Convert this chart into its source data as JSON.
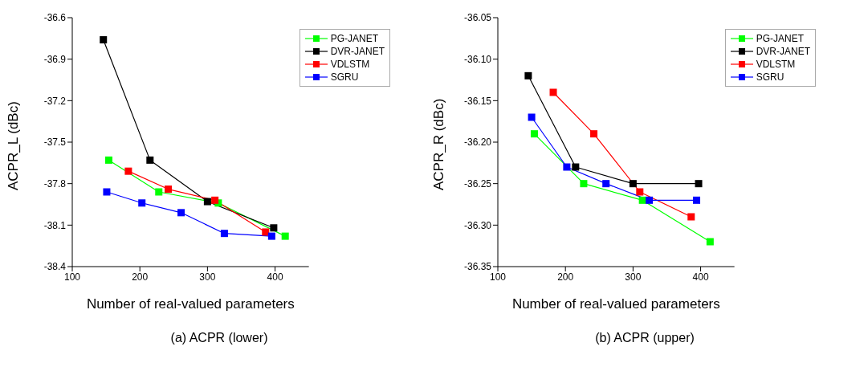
{
  "chart_data": [
    {
      "type": "line",
      "xlabel": "Number of real-valued parameters",
      "ylabel": "ACPR_L (dBc)",
      "annotations": [
        "(a) ACPR (lower)"
      ],
      "xlim": [
        100,
        450
      ],
      "xticks": [
        100,
        200,
        300,
        400
      ],
      "ylim": [
        -38.4,
        -36.6
      ],
      "yticks": [
        {
          "value": -36.6,
          "label": "-36.6"
        },
        {
          "value": -36.9,
          "label": "-36.9"
        },
        {
          "value": -37.2,
          "label": "-37.2"
        },
        {
          "value": -37.5,
          "label": "-37.5"
        },
        {
          "value": -37.8,
          "label": "-37.8"
        },
        {
          "value": -38.1,
          "label": "-38.1"
        },
        {
          "value": -38.4,
          "label": "-38.4"
        }
      ],
      "grid": false,
      "legend": "top right",
      "marker": "square",
      "line_style": "solid",
      "series": [
        {
          "name": "PG-JANET",
          "color": "#00ff00",
          "x": [
            154,
            228,
            316,
            415
          ],
          "values": [
            -37.63,
            -37.86,
            -37.94,
            -38.18
          ]
        },
        {
          "name": "DVR-JANET",
          "color": "#000000",
          "x": [
            146,
            215,
            300,
            398
          ],
          "values": [
            -36.76,
            -37.63,
            -37.93,
            -38.12
          ]
        },
        {
          "name": "VDLSTM",
          "color": "#ff0000",
          "x": [
            183,
            242,
            311,
            386
          ],
          "values": [
            -37.71,
            -37.84,
            -37.92,
            -38.15
          ]
        },
        {
          "name": "SGRU",
          "color": "#0000ff",
          "x": [
            151,
            203,
            261,
            325,
            395
          ],
          "values": [
            -37.86,
            -37.94,
            -38.01,
            -38.16,
            -38.18
          ]
        }
      ]
    },
    {
      "type": "line",
      "xlabel": "Number of real-valued parameters",
      "ylabel": "ACPR_R (dBc)",
      "annotations": [
        "(b) ACPR (upper)"
      ],
      "xlim": [
        100,
        450
      ],
      "xticks": [
        100,
        200,
        300,
        400
      ],
      "ylim": [
        -36.35,
        -36.05
      ],
      "yticks": [
        {
          "value": -36.05,
          "label": "-36.05"
        },
        {
          "value": -36.1,
          "label": "-36.10"
        },
        {
          "value": -36.15,
          "label": "-36.15"
        },
        {
          "value": -36.2,
          "label": "-36.20"
        },
        {
          "value": -36.25,
          "label": "-36.25"
        },
        {
          "value": -36.3,
          "label": "-36.30"
        },
        {
          "value": -36.35,
          "label": "-36.35"
        }
      ],
      "grid": false,
      "legend": "top right",
      "marker": "square",
      "line_style": "solid",
      "series": [
        {
          "name": "PG-JANET",
          "color": "#00ff00",
          "x": [
            154,
            227,
            314,
            414
          ],
          "values": [
            -36.19,
            -36.25,
            -36.27,
            -36.32
          ]
        },
        {
          "name": "DVR-JANET",
          "color": "#000000",
          "x": [
            145,
            215,
            300,
            397
          ],
          "values": [
            -36.12,
            -36.23,
            -36.25,
            -36.25
          ]
        },
        {
          "name": "VDLSTM",
          "color": "#ff0000",
          "x": [
            182,
            242,
            310,
            386
          ],
          "values": [
            -36.14,
            -36.19,
            -36.26,
            -36.29
          ]
        },
        {
          "name": "SGRU",
          "color": "#0000ff",
          "x": [
            150,
            202,
            260,
            324,
            394
          ],
          "values": [
            -36.17,
            -36.23,
            -36.25,
            -36.27,
            -36.27
          ]
        }
      ]
    }
  ]
}
